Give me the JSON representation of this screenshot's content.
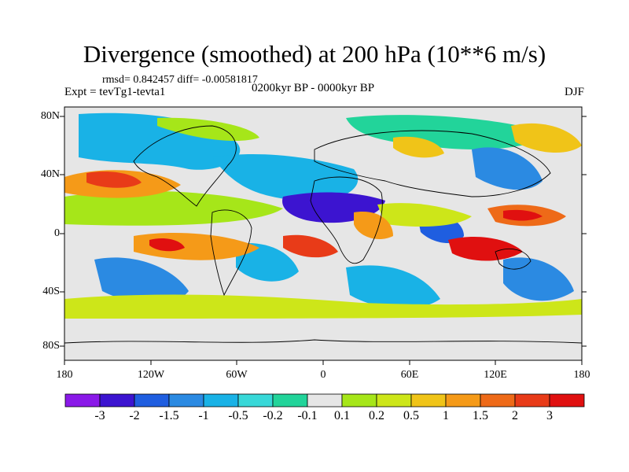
{
  "header": {
    "title": "Divergence (smoothed) at 200 hPa (10**6 m/s)",
    "stats": "rmsd= 0.842457 diff= -0.00581817",
    "experiment": "Expt = tevTg1-tevta1",
    "period": "0200kyr BP - 0000kyr BP",
    "season": "DJF"
  },
  "axes": {
    "lat_labels": [
      "80N",
      "40N",
      "0",
      "40S",
      "80S"
    ],
    "lon_labels": [
      "180",
      "120W",
      "60W",
      "0",
      "60E",
      "120E",
      "180"
    ]
  },
  "colorbar": {
    "labels": [
      "-3",
      "-2",
      "-1.5",
      "-1",
      "-0.5",
      "-0.2",
      "-0.1",
      "0.1",
      "0.2",
      "0.5",
      "1",
      "1.5",
      "2",
      "3"
    ],
    "colors": [
      "#8a19e8",
      "#3c14d0",
      "#1f5ee0",
      "#2b8ae2",
      "#19b2e6",
      "#38d8d8",
      "#22d49a",
      "#e6e6e6",
      "#a6e619",
      "#cde619",
      "#f0c418",
      "#f59a18",
      "#ee6a18",
      "#e83b18",
      "#e01010"
    ]
  }
}
